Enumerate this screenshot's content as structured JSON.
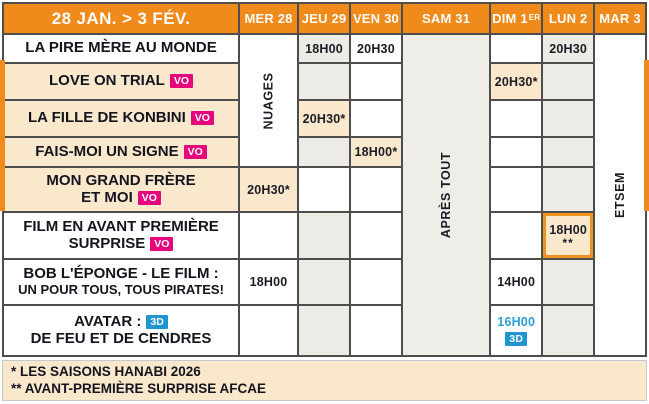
{
  "colors": {
    "orange": "#EF8A1B",
    "highlight": "#F0921E",
    "cream": "#FAE8CC",
    "pink": "#E5067E",
    "blue": "#1E95D0"
  },
  "header": {
    "week": "28 JAN. > 3 FÉV.",
    "days": [
      {
        "label": "MER 28"
      },
      {
        "label": "JEU 29"
      },
      {
        "label": "VEN 30"
      },
      {
        "label": "SAM 31"
      },
      {
        "label": "DIM 1",
        "sup": "ER"
      },
      {
        "label": "LUN 2"
      },
      {
        "label": "MAR 3"
      }
    ]
  },
  "vertical_films": [
    {
      "text": "NUAGES",
      "day": "MER 28",
      "row_start": 1,
      "row_end": 4,
      "shaded": false
    },
    {
      "text": "APRÈS TOUT",
      "day": "SAM 31",
      "row_start": 1,
      "row_end": 8,
      "shaded": true
    },
    {
      "text": "ETSEM",
      "day": "MAR 3",
      "row_start": 1,
      "row_end": 8,
      "shaded": false
    }
  ],
  "films": [
    {
      "id": "la-pire-mere-au-monde",
      "cream": false,
      "lines": [
        {
          "text": "LA PIRE MÈRE AU MONDE"
        }
      ],
      "showtimes": [
        {
          "day": "JEU 29",
          "time": "18H00"
        },
        {
          "day": "VEN 30",
          "time": "20H30"
        },
        {
          "day": "LUN 2",
          "time": "20H30"
        }
      ]
    },
    {
      "id": "love-on-trial",
      "cream": true,
      "lines": [
        {
          "text": "LOVE ON TRIAL",
          "badge": "VO"
        }
      ],
      "showtimes": [
        {
          "day": "DIM 1",
          "time": "20H30*"
        }
      ]
    },
    {
      "id": "la-fille-de-konbini",
      "cream": true,
      "lines": [
        {
          "text": "LA FILLE DE KONBINI",
          "badge": "VO"
        }
      ],
      "showtimes": [
        {
          "day": "JEU 29",
          "time": "20H30*"
        }
      ]
    },
    {
      "id": "fais-moi-un-signe",
      "cream": true,
      "lines": [
        {
          "text": "FAIS-MOI UN SIGNE",
          "badge": "VO"
        }
      ],
      "showtimes": [
        {
          "day": "VEN 30",
          "time": "18H00*"
        }
      ]
    },
    {
      "id": "mon-grand-frere-et-moi",
      "cream": true,
      "lines": [
        {
          "text": "MON GRAND FRÈRE"
        },
        {
          "text": "ET MOI",
          "badge": "VO"
        }
      ],
      "showtimes": [
        {
          "day": "MER 28",
          "time": "20H30*"
        }
      ]
    },
    {
      "id": "film-en-avant-premiere-surprise",
      "cream": false,
      "lines": [
        {
          "text": "FILM EN AVANT PREMIÈRE"
        },
        {
          "text": "SURPRISE",
          "badge": "VO"
        }
      ],
      "showtimes": [
        {
          "day": "LUN 2",
          "time": "18H00",
          "sub": "**",
          "boxed": true
        }
      ]
    },
    {
      "id": "bob-l-eponge-le-film",
      "cream": false,
      "lines": [
        {
          "text": "BOB L'ÉPONGE - LE FILM :"
        },
        {
          "text": "UN POUR TOUS, TOUS PIRATES!",
          "small": true
        }
      ],
      "showtimes": [
        {
          "day": "MER 28",
          "time": "18H00"
        },
        {
          "day": "DIM 1",
          "time": "14H00"
        }
      ]
    },
    {
      "id": "avatar-de-feu-et-de-cendres",
      "cream": false,
      "lines": [
        {
          "text": "AVATAR :",
          "badge": "3D"
        },
        {
          "text": "DE FEU ET DE CENDRES"
        }
      ],
      "showtimes": [
        {
          "day": "DIM 1",
          "time": "16H00",
          "blue": true,
          "badge": "3D"
        }
      ]
    }
  ],
  "footer": {
    "line1": "* LES SAISONS HANABI 2026",
    "line2": "** AVANT-PREMIÈRE SURPRISE AFCAE"
  }
}
